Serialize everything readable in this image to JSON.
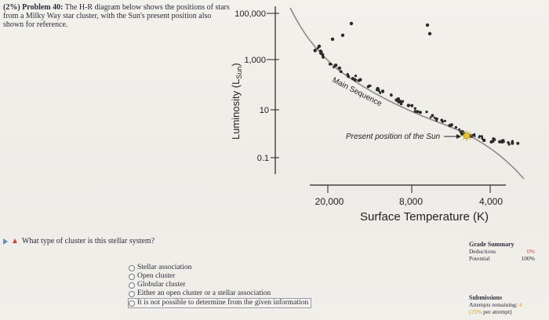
{
  "problem": {
    "prefix": "(2%) Problem 40:",
    "text": "The H-R diagram below shows the positions of stars from a Milky Way star cluster, with the Sun's present position also shown for reference."
  },
  "chart_data": {
    "type": "scatter",
    "ylabel": "Luminosity (L",
    "ylabel_sub": "Sun",
    "ylabel_close": ")",
    "xlabel": "Surface Temperature (K)",
    "y_ticks": [
      "100,000",
      "1,000",
      "10",
      "0.1"
    ],
    "x_ticks": [
      "20,000",
      "8,000",
      "4,000"
    ],
    "annotations": {
      "main_sequence": "Main Sequence",
      "sun": "Present position of the Sun"
    },
    "axis_color": "#222222",
    "dot_color": "#2a2a2a",
    "curve_color": "#8a8a8a"
  },
  "question": {
    "text": "What type of cluster is this stellar system?"
  },
  "options": [
    "Stellar association",
    "Open cluster",
    "Globular cluster",
    "Either an open cluster or a stellar association",
    "It is not possible to determine from the given information"
  ],
  "grade_summary": {
    "title": "Grade Summary",
    "deductions_label": "Deductions",
    "deductions_value": "0%",
    "potential_label": "Potential",
    "potential_value": "100%"
  },
  "submissions": {
    "title": "Submissions",
    "attempts_label": "Attempts remaining:",
    "attempts_value": "4",
    "per_attempt_value": "(25%",
    "per_attempt_label": "per attempt)"
  }
}
